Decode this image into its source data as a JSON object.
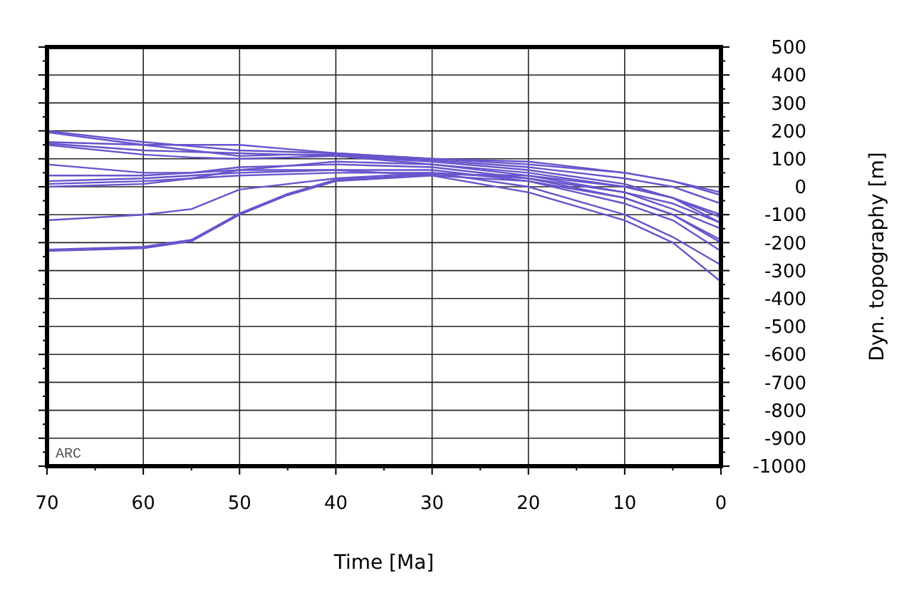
{
  "chart_data": {
    "type": "line",
    "xlabel": "Time [Ma]",
    "ylabel": "Dyn. topography [m]",
    "x": [
      70,
      60,
      55,
      50,
      45,
      40,
      30,
      20,
      10,
      5,
      0
    ],
    "xlim": [
      70,
      0
    ],
    "ylim": [
      -1000,
      500
    ],
    "xticks": [
      70,
      60,
      50,
      40,
      30,
      20,
      10,
      0
    ],
    "yticks": [
      -1000,
      -900,
      -800,
      -700,
      -600,
      -500,
      -400,
      -300,
      -200,
      -100,
      0,
      100,
      200,
      300,
      400,
      500
    ],
    "grid": true,
    "annotations": [
      "ARC"
    ],
    "series": [
      {
        "color": "#6655cc",
        "values": [
          200,
          160,
          145,
          130,
          125,
          120,
          100,
          80,
          50,
          20,
          -30
        ]
      },
      {
        "color": "#6655cc",
        "values": [
          195,
          150,
          130,
          110,
          115,
          115,
          95,
          70,
          30,
          0,
          -60
        ]
      },
      {
        "color": "#6655cc",
        "values": [
          160,
          150,
          150,
          150,
          135,
          120,
          100,
          90,
          50,
          20,
          -20
        ]
      },
      {
        "color": "#6655cc",
        "values": [
          155,
          130,
          125,
          120,
          115,
          110,
          90,
          60,
          10,
          -40,
          -110
        ]
      },
      {
        "color": "#6655cc",
        "values": [
          150,
          115,
          105,
          100,
          105,
          110,
          80,
          40,
          -20,
          -80,
          -150
        ]
      },
      {
        "color": "#6655cc",
        "values": [
          80,
          50,
          50,
          60,
          75,
          90,
          80,
          50,
          0,
          -40,
          -100
        ]
      },
      {
        "color": "#6655cc",
        "values": [
          40,
          40,
          50,
          70,
          75,
          80,
          70,
          30,
          -40,
          -100,
          -200
        ]
      },
      {
        "color": "#6655cc",
        "values": [
          20,
          30,
          40,
          50,
          55,
          60,
          60,
          20,
          -60,
          -120,
          -230
        ]
      },
      {
        "color": "#6655cc",
        "values": [
          10,
          20,
          30,
          40,
          45,
          50,
          50,
          0,
          -100,
          -180,
          -280
        ]
      },
      {
        "color": "#6655cc",
        "values": [
          0,
          10,
          30,
          60,
          60,
          60,
          40,
          -20,
          -120,
          -200,
          -340
        ]
      },
      {
        "color": "#6655cc",
        "values": [
          -120,
          -100,
          -80,
          -10,
          10,
          30,
          50,
          30,
          -20,
          -60,
          -130
        ]
      },
      {
        "color": "#6655cc",
        "values": [
          -230,
          -220,
          -195,
          -100,
          -30,
          20,
          40,
          20,
          -40,
          -100,
          -190
        ]
      },
      {
        "color": "#6655cc",
        "values": [
          -225,
          -215,
          -190,
          -95,
          -25,
          25,
          45,
          40,
          0,
          -40,
          -130
        ]
      }
    ]
  }
}
